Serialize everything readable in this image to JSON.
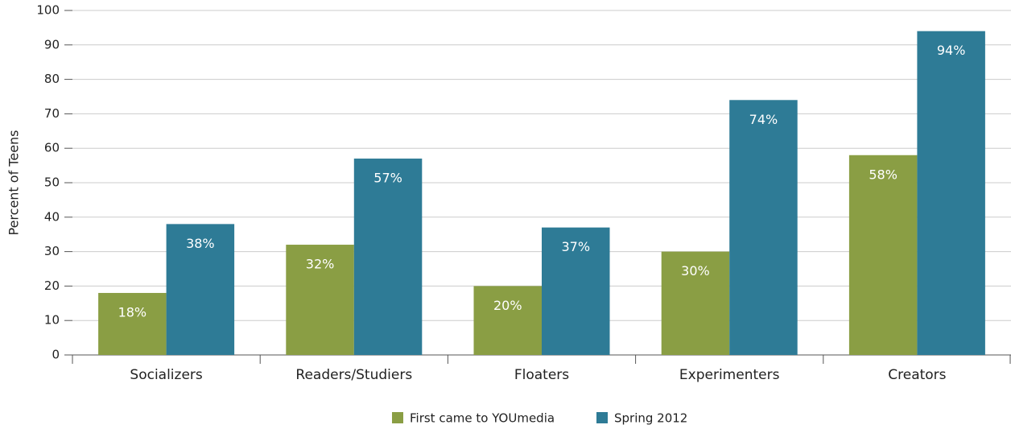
{
  "chart_data": {
    "type": "bar",
    "y_label": "Percent of Teens",
    "categories": [
      "Socializers",
      "Readers/Studiers",
      "Floaters",
      "Experimenters",
      "Creators"
    ],
    "series": [
      {
        "name": "First came to YOUmedia",
        "color": "#8a9e44",
        "values": [
          18,
          32,
          20,
          30,
          58
        ],
        "value_labels": [
          "18%",
          "32%",
          "20%",
          "30%",
          "58%"
        ]
      },
      {
        "name": "Spring 2012",
        "color": "#2e7b96",
        "values": [
          38,
          57,
          37,
          74,
          94
        ],
        "value_labels": [
          "38%",
          "57%",
          "37%",
          "74%",
          "94%"
        ]
      }
    ],
    "ylim": [
      0,
      100
    ],
    "yticks": [
      0,
      10,
      20,
      30,
      40,
      50,
      60,
      70,
      80,
      90,
      100
    ],
    "grid": true,
    "legend": "bottom"
  }
}
